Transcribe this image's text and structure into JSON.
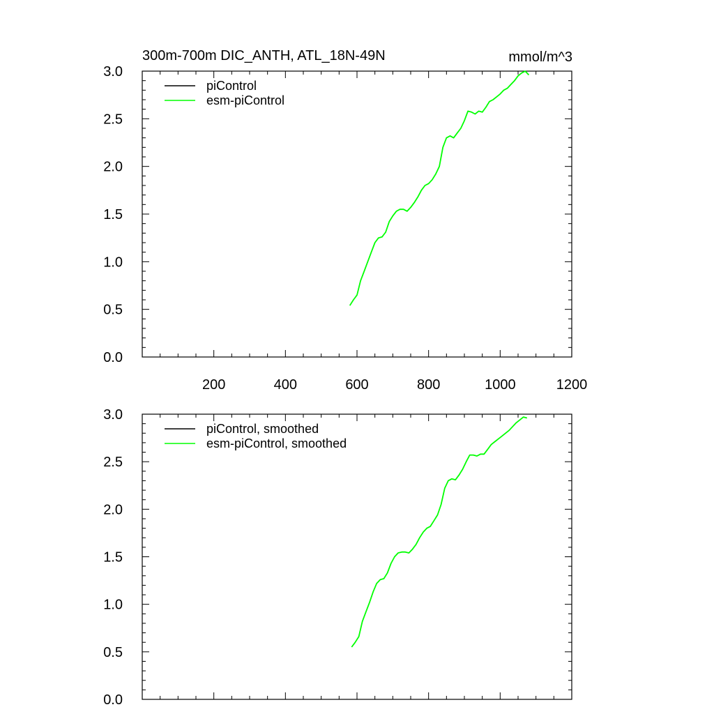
{
  "chart_data": [
    {
      "type": "line",
      "title": "300m-700m DIC_ANTH, ATL_18N-49N",
      "units": "mmol/m^3",
      "xlim": [
        0,
        1200
      ],
      "ylim": [
        0.0,
        3.0
      ],
      "xticks": [
        200,
        400,
        600,
        800,
        1000,
        1200
      ],
      "xtick_labels": [
        "200",
        "400",
        "600",
        "800",
        "1000",
        "1200"
      ],
      "yticks": [
        0.0,
        0.5,
        1.0,
        1.5,
        2.0,
        2.5,
        3.0
      ],
      "ytick_labels": [
        "0.0",
        "0.5",
        "1.0",
        "1.5",
        "2.0",
        "2.5",
        "3.0"
      ],
      "grid": false,
      "legend_position": "top-left",
      "series": [
        {
          "name": "piControl",
          "color": "#000000",
          "x": [],
          "y": []
        },
        {
          "name": "esm-piControl",
          "color": "#00ff00",
          "x": [
            580,
            590,
            600,
            610,
            620,
            630,
            640,
            650,
            660,
            670,
            680,
            690,
            700,
            710,
            720,
            730,
            740,
            750,
            760,
            770,
            780,
            790,
            800,
            810,
            820,
            830,
            840,
            850,
            860,
            870,
            880,
            890,
            900,
            910,
            920,
            930,
            940,
            950,
            960,
            970,
            980,
            990,
            1000,
            1010,
            1020,
            1030,
            1040,
            1050,
            1060,
            1070,
            1080
          ],
          "y": [
            0.54,
            0.6,
            0.65,
            0.8,
            0.9,
            1.0,
            1.1,
            1.2,
            1.25,
            1.26,
            1.31,
            1.42,
            1.48,
            1.53,
            1.55,
            1.55,
            1.53,
            1.57,
            1.62,
            1.68,
            1.75,
            1.8,
            1.82,
            1.86,
            1.92,
            2.0,
            2.2,
            2.3,
            2.32,
            2.3,
            2.35,
            2.4,
            2.48,
            2.58,
            2.57,
            2.55,
            2.58,
            2.57,
            2.62,
            2.68,
            2.7,
            2.73,
            2.76,
            2.8,
            2.82,
            2.86,
            2.9,
            2.95,
            2.98,
            3.0,
            2.96
          ]
        }
      ]
    },
    {
      "type": "line",
      "xlim": [
        0,
        1200
      ],
      "ylim": [
        0.0,
        3.0
      ],
      "yticks": [
        0.0,
        0.5,
        1.0,
        1.5,
        2.0,
        2.5,
        3.0
      ],
      "ytick_labels": [
        "0.0",
        "0.5",
        "1.0",
        "1.5",
        "2.0",
        "2.5",
        "3.0"
      ],
      "grid": false,
      "legend_position": "top-left",
      "series": [
        {
          "name": "piControl, smoothed",
          "color": "#000000",
          "x": [],
          "y": []
        },
        {
          "name": "esm-piControl, smoothed",
          "color": "#00ff00",
          "x": [
            585,
            595,
            605,
            615,
            625,
            635,
            645,
            655,
            665,
            675,
            685,
            695,
            705,
            715,
            725,
            735,
            745,
            755,
            765,
            775,
            785,
            795,
            805,
            815,
            825,
            835,
            845,
            855,
            865,
            875,
            885,
            895,
            905,
            915,
            925,
            935,
            945,
            955,
            965,
            975,
            985,
            995,
            1005,
            1015,
            1025,
            1035,
            1045,
            1055,
            1065,
            1075
          ],
          "y": [
            0.55,
            0.6,
            0.66,
            0.82,
            0.92,
            1.02,
            1.13,
            1.22,
            1.26,
            1.27,
            1.33,
            1.43,
            1.5,
            1.54,
            1.55,
            1.55,
            1.54,
            1.58,
            1.63,
            1.7,
            1.76,
            1.8,
            1.82,
            1.88,
            1.94,
            2.05,
            2.22,
            2.3,
            2.32,
            2.31,
            2.36,
            2.42,
            2.5,
            2.57,
            2.57,
            2.56,
            2.58,
            2.58,
            2.63,
            2.68,
            2.71,
            2.74,
            2.77,
            2.8,
            2.83,
            2.87,
            2.91,
            2.94,
            2.97,
            2.96
          ]
        }
      ]
    }
  ]
}
